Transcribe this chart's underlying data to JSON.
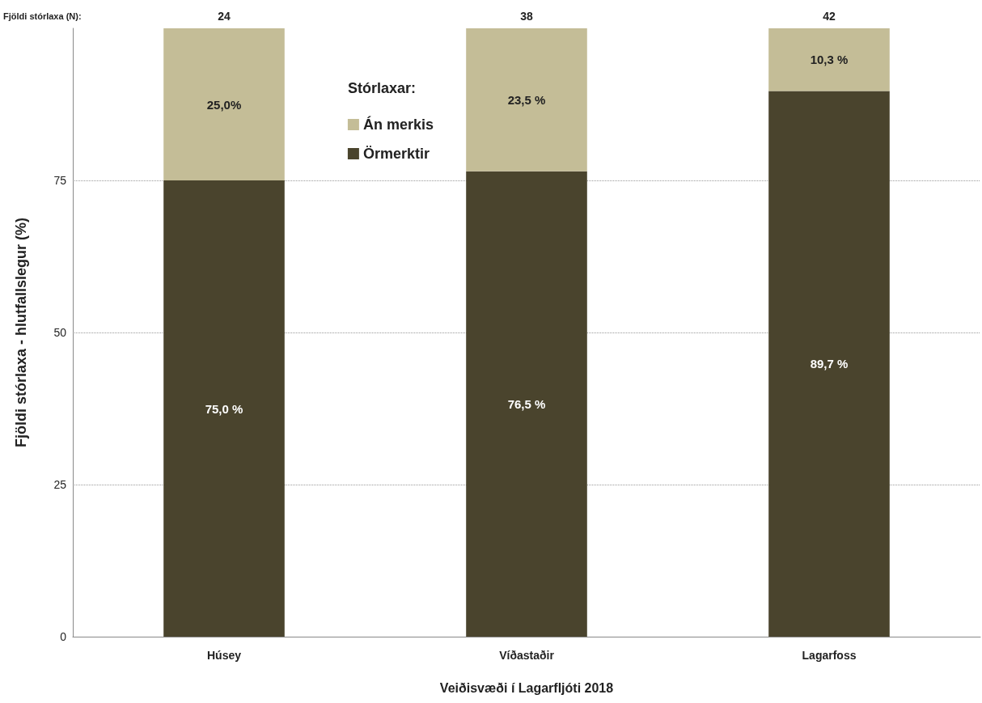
{
  "chart_data": {
    "type": "bar",
    "stacked": true,
    "xlabel": "Veiðisvæði í Lagarfljóti 2018",
    "ylabel": "Fjöldi stórlaxa - hlutfallslegur (%)",
    "legend_title": "Stórlaxar:",
    "legend": "top",
    "grid": "y",
    "categories": [
      "Húsey",
      "Víðastaðir",
      "Lagarfoss"
    ],
    "series": [
      {
        "name": "Örmerktir",
        "color": "#4a442d",
        "values": [
          75.0,
          76.5,
          89.7
        ],
        "value_labels": [
          "75,0 %",
          "76,5 %",
          "89,7 %"
        ]
      },
      {
        "name": "Án merkis",
        "color": "#c4bd97",
        "values": [
          25.0,
          23.5,
          10.3
        ],
        "value_labels": [
          "25,0%",
          "23,5 %",
          "10,3 %"
        ]
      }
    ],
    "ylim": [
      0,
      100
    ],
    "yticks": [
      0,
      25,
      50,
      75
    ],
    "annotations": [
      "Fjöldi stórlaxa (N):",
      "24",
      "38",
      "42"
    ]
  }
}
